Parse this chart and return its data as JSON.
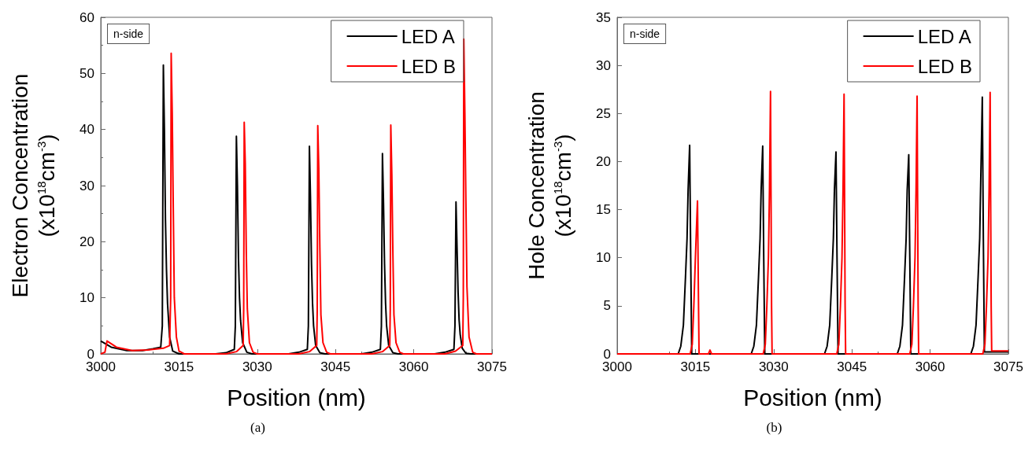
{
  "chart_data": [
    {
      "type": "line",
      "xlabel": "Position (nm)",
      "ylabel": "Electron Concentration\n(x10$^{18}$cm$^{-3}$)",
      "annotations": [
        "n-side",
        "(a)"
      ],
      "xlim": [
        3000,
        3075
      ],
      "xticks": [
        3000,
        3015,
        3030,
        3045,
        3060,
        3075
      ],
      "ylim": [
        0,
        60
      ],
      "yticks": [
        0,
        10,
        20,
        30,
        40,
        50,
        60
      ],
      "grid": false,
      "legend": "top right",
      "series": [
        {
          "name": "LED A",
          "color": "#000000",
          "x": [
            3000,
            3002,
            3005,
            3008,
            3010,
            3011.5,
            3011.8,
            3012,
            3012.2,
            3012.4,
            3012.6,
            3012.8,
            3013.2,
            3013.8,
            3015,
            3022,
            3024,
            3025.6,
            3025.8,
            3026,
            3026.2,
            3026.4,
            3026.6,
            3026.8,
            3027.2,
            3028,
            3029,
            3036,
            3038,
            3039.6,
            3039.8,
            3040,
            3040.2,
            3040.4,
            3040.6,
            3040.8,
            3041.2,
            3042,
            3043,
            3050,
            3052,
            3053.6,
            3053.8,
            3054,
            3054.2,
            3054.4,
            3054.6,
            3054.8,
            3055.2,
            3056,
            3057,
            3064,
            3066,
            3067.7,
            3067.9,
            3068.1,
            3068.3,
            3068.5,
            3068.7,
            3068.9,
            3069.3,
            3070,
            3071,
            3075
          ],
          "values": [
            2.3,
            1.2,
            0.6,
            0.6,
            0.9,
            1.2,
            5,
            51.5,
            40,
            24,
            15,
            9,
            3,
            0.5,
            0,
            0,
            0.2,
            0.8,
            5,
            38.8,
            30,
            17,
            10,
            6,
            2,
            0.3,
            0,
            0,
            0.3,
            0.8,
            5,
            37,
            28,
            16,
            9,
            5,
            1.5,
            0.2,
            0,
            0,
            0.3,
            0.8,
            5,
            35.7,
            27,
            16,
            9,
            5,
            1.5,
            0.2,
            0,
            0,
            0.3,
            0.8,
            5,
            27.1,
            19,
            11,
            6,
            3.5,
            1,
            0.1,
            0,
            0
          ]
        },
        {
          "name": "LED B",
          "color": "#ff0000",
          "x": [
            3000,
            3000.8,
            3001.2,
            3003,
            3006,
            3009,
            3012,
            3013.2,
            3013.4,
            3013.5,
            3013.7,
            3013.9,
            3014.1,
            3014.5,
            3015,
            3016,
            3024,
            3026,
            3027.3,
            3027.4,
            3027.5,
            3027.7,
            3027.9,
            3028.1,
            3028.5,
            3029.2,
            3030,
            3038,
            3040,
            3041.4,
            3041.5,
            3041.6,
            3041.8,
            3042,
            3042.2,
            3042.6,
            3043.3,
            3044,
            3052,
            3054,
            3055.4,
            3055.5,
            3055.6,
            3055.8,
            3056,
            3056.2,
            3056.6,
            3057.3,
            3058,
            3066,
            3068,
            3069.4,
            3069.5,
            3069.6,
            3069.8,
            3070,
            3070.2,
            3070.6,
            3071.3,
            3072,
            3075
          ],
          "values": [
            0,
            0.3,
            2.3,
            1.2,
            0.6,
            0.7,
            1,
            1.5,
            10,
            53.6,
            43,
            26,
            10,
            3,
            0.5,
            0,
            0,
            0.4,
            1.5,
            8,
            41.3,
            34,
            18,
            8,
            2,
            0.3,
            0,
            0,
            0.4,
            1.5,
            8,
            40.7,
            33,
            19,
            7,
            2,
            0.3,
            0,
            0,
            0.4,
            1.5,
            8,
            40.8,
            32,
            18,
            7,
            2,
            0.3,
            0,
            0,
            0.5,
            1.5,
            10,
            56.1,
            43,
            27,
            12,
            3,
            0.3,
            0,
            0
          ]
        }
      ]
    },
    {
      "type": "line",
      "xlabel": "Position (nm)",
      "ylabel": "Hole Concentration\n(x10$^{18}$cm$^{-3}$)",
      "annotations": [
        "n-side",
        "(b)"
      ],
      "xlim": [
        3000,
        3075
      ],
      "xticks": [
        3000,
        3015,
        3030,
        3045,
        3060,
        3075
      ],
      "ylim": [
        0,
        35
      ],
      "yticks": [
        0,
        5,
        10,
        15,
        20,
        25,
        30,
        35
      ],
      "grid": false,
      "legend": "top right",
      "series": [
        {
          "name": "LED A",
          "color": "#000000",
          "x": [
            3000,
            3011.7,
            3012.2,
            3012.7,
            3013.1,
            3013.4,
            3013.6,
            3013.9,
            3014.1,
            3014.3,
            3025.7,
            3026.2,
            3026.7,
            3027.1,
            3027.4,
            3027.6,
            3027.9,
            3028.1,
            3028.3,
            3039.75,
            3040.25,
            3040.75,
            3041.15,
            3041.45,
            3041.65,
            3041.95,
            3042.15,
            3042.35,
            3053.7,
            3054.2,
            3054.7,
            3055.1,
            3055.4,
            3055.6,
            3055.9,
            3056.1,
            3056.3,
            3067.8,
            3068.3,
            3068.8,
            3069.2,
            3069.5,
            3069.7,
            3070,
            3070.2,
            3070.4,
            3075
          ],
          "values": [
            0,
            0,
            0.8,
            3,
            8,
            12,
            17,
            21.7,
            10,
            0,
            0,
            0.8,
            3,
            8,
            12,
            17,
            21.6,
            10,
            0,
            0,
            0.8,
            3,
            8,
            12,
            17,
            21,
            10,
            0,
            0,
            0.8,
            3,
            8,
            12,
            17,
            20.7,
            10,
            0,
            0,
            0.8,
            3,
            8,
            12,
            18,
            26.7,
            12,
            0.2,
            0.2
          ]
        },
        {
          "name": "LED B",
          "color": "#ff0000",
          "x": [
            3000,
            3014,
            3014.4,
            3014.7,
            3015,
            3015.2,
            3015.4,
            3015.6,
            3015.7,
            3017.5,
            3017.8,
            3018.1,
            3028,
            3028.4,
            3028.7,
            3029,
            3029.2,
            3029.4,
            3029.6,
            3029.7,
            3042.1,
            3042.5,
            3042.8,
            3043.1,
            3043.3,
            3043.5,
            3043.7,
            3043.8,
            3056.1,
            3056.5,
            3056.8,
            3057.1,
            3057.3,
            3057.5,
            3057.7,
            3057.8,
            3070.1,
            3070.5,
            3070.8,
            3071.1,
            3071.3,
            3071.5,
            3071.7,
            3071.8,
            3075
          ],
          "values": [
            0,
            0,
            1,
            5,
            10,
            13,
            15.9,
            5,
            0,
            0,
            0.4,
            0,
            0,
            1,
            5,
            10,
            17,
            27.3,
            5,
            0,
            0,
            1,
            5,
            10,
            17,
            27,
            5,
            0,
            0,
            1,
            5,
            10,
            17,
            26.8,
            5,
            0,
            0,
            1,
            5,
            10,
            17,
            27.2,
            5,
            0.3,
            0.3
          ]
        }
      ]
    }
  ]
}
